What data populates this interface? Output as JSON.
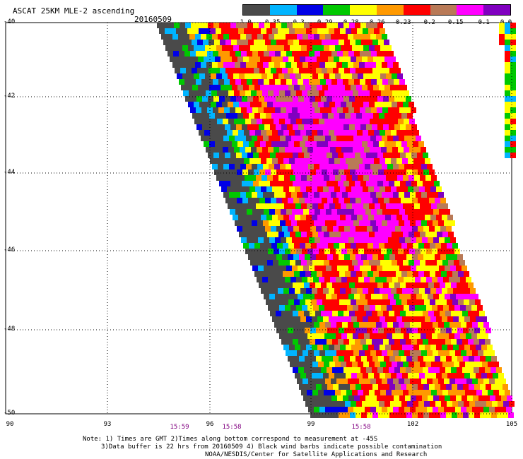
{
  "title": "ASCAT 25KM MLE-2 ascending",
  "date": "20160509",
  "legend": {
    "colors": [
      "#4a4a4a",
      "#00b4ff",
      "#0000e6",
      "#00c800",
      "#ffff00",
      "#ff9900",
      "#ff0000",
      "#b97a57",
      "#ff00ff",
      "#8000c0"
    ],
    "labels": [
      "-1.0",
      "-0.35",
      "-0.3",
      "-0.29",
      "-0.28",
      "-0.26",
      "-0.23",
      "-0.2",
      "-0.15",
      "-0.1",
      "0.0"
    ]
  },
  "axes": {
    "lat_labels": [
      "-40",
      "-42",
      "-44",
      "-46",
      "-48",
      "-50"
    ],
    "lon_labels": [
      "90",
      "93",
      "96",
      "99",
      "102",
      "105"
    ]
  },
  "time_labels": [
    "15:59",
    "15:58",
    "15:58"
  ],
  "notes": [
    "Note: 1) Times are GMT 2)Times along bottom correspond to measurement at -45S",
    "3)Data buffer is 22 hrs from 20160509 4) Black wind barbs indicate possible contamination",
    "NOAA/NESDIS/Center for Satellite Applications and Research"
  ]
}
